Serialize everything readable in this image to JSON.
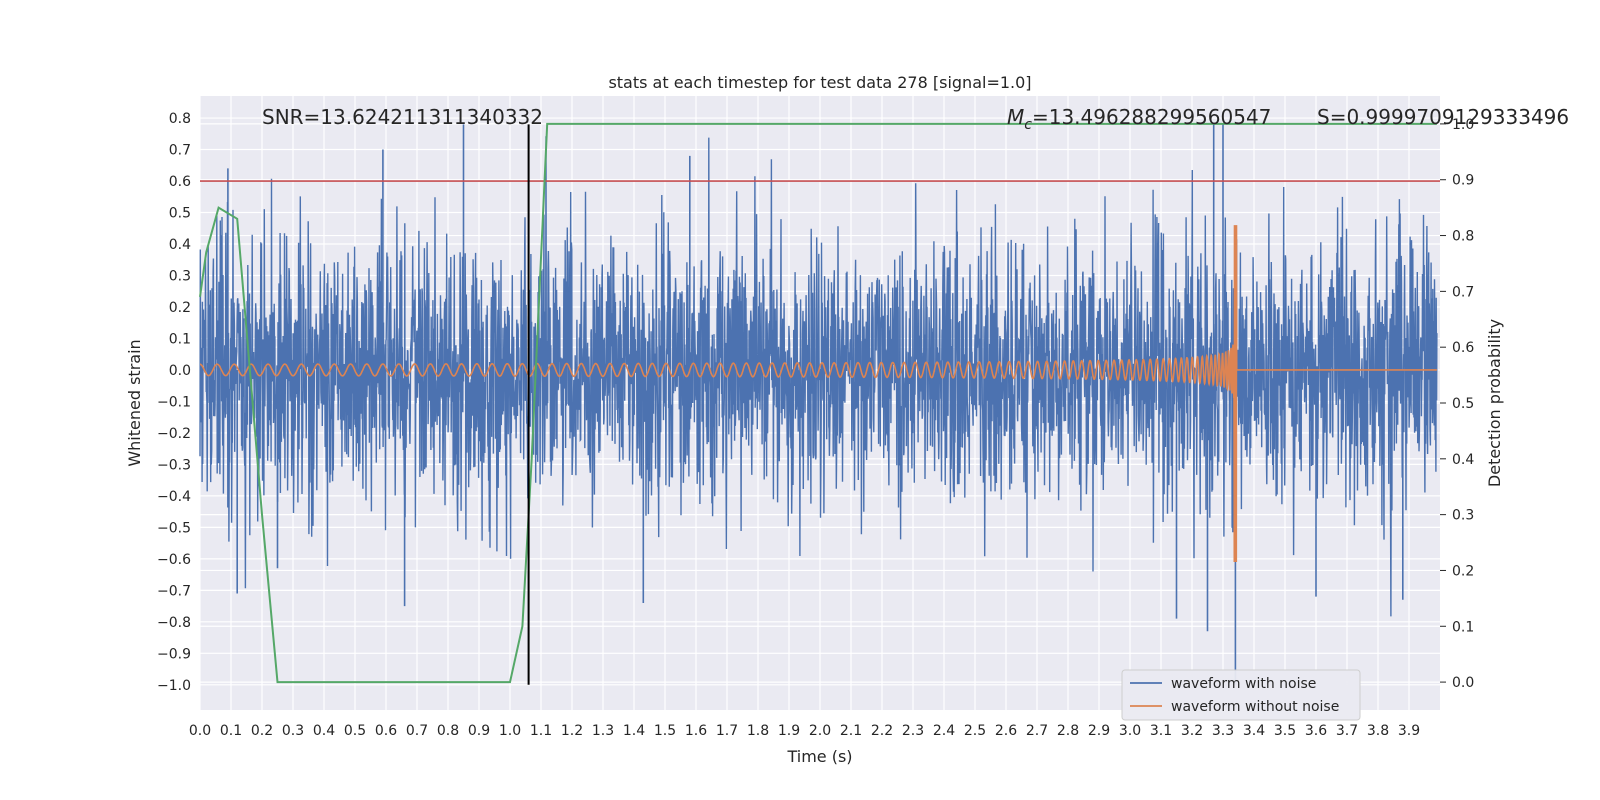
{
  "chart_data": {
    "type": "line",
    "title": "stats at each timestep for test data 278 [signal=1.0]",
    "xlabel": "Time (s)",
    "ylabel": "Whitened strain",
    "y2label": "Detection probability",
    "xlim": [
      0.0,
      4.0
    ],
    "ylim": [
      -1.08,
      0.87
    ],
    "y2lim": [
      -0.05,
      1.05
    ],
    "xticks": [
      "0.0",
      "0.1",
      "0.2",
      "0.3",
      "0.4",
      "0.5",
      "0.6",
      "0.7",
      "0.8",
      "0.9",
      "1.0",
      "1.1",
      "1.2",
      "1.3",
      "1.4",
      "1.5",
      "1.6",
      "1.7",
      "1.8",
      "1.9",
      "2.0",
      "2.1",
      "2.2",
      "2.3",
      "2.4",
      "2.5",
      "2.6",
      "2.7",
      "2.8",
      "2.9",
      "3.0",
      "3.1",
      "3.2",
      "3.3",
      "3.4",
      "3.5",
      "3.6",
      "3.7",
      "3.8",
      "3.9"
    ],
    "yticks": [
      "0.8",
      "0.7",
      "0.6",
      "0.5",
      "0.4",
      "0.3",
      "0.2",
      "0.1",
      "0.0",
      "−0.1",
      "−0.2",
      "−0.3",
      "−0.4",
      "−0.5",
      "−0.6",
      "−0.7",
      "−0.8",
      "−0.9",
      "−1.0"
    ],
    "y2ticks": [
      "1.0",
      "0.9",
      "0.8",
      "0.7",
      "0.6",
      "0.5",
      "0.4",
      "0.3",
      "0.2",
      "0.1",
      "0.0"
    ],
    "grid": true,
    "legend_position": "lower-right",
    "annotations": {
      "snr": "SNR=13.624211311340332",
      "mc_prefix": "M",
      "mc_sub": "c",
      "mc_value": "=13.496288299560547",
      "s": "S=0.9999709129333496"
    },
    "threshold_line": {
      "y": 0.6,
      "color": "#c44e52"
    },
    "marker_line": {
      "x": 1.06,
      "ymin": -1.0,
      "ymax": 0.78,
      "color": "#000000"
    },
    "series": [
      {
        "name": "waveform with noise",
        "color": "#4c72b0",
        "description_kind": "noise",
        "t_range": [
          0.0,
          3.99
        ],
        "amplitude_typical": 0.4,
        "peaks": [
          {
            "t": 0.09,
            "y": 0.64
          },
          {
            "t": 0.59,
            "y": 0.7
          },
          {
            "t": 0.85,
            "y": 0.78
          },
          {
            "t": 1.58,
            "y": 0.68
          },
          {
            "t": 3.27,
            "y": 0.78
          },
          {
            "t": 3.3,
            "y": 0.78
          },
          {
            "t": 3.34,
            "y": -1.0
          },
          {
            "t": 0.66,
            "y": -0.75
          },
          {
            "t": 1.43,
            "y": -0.74
          },
          {
            "t": 3.15,
            "y": -0.79
          },
          {
            "t": 3.25,
            "y": -0.83
          },
          {
            "t": 0.12,
            "y": -0.71
          },
          {
            "t": 0.25,
            "y": -0.63
          },
          {
            "t": 3.6,
            "y": -0.72
          },
          {
            "t": 3.88,
            "y": -0.73
          }
        ]
      },
      {
        "name": "waveform without noise",
        "color": "#dd8452",
        "description_kind": "chirp",
        "t_start": 0.0,
        "t_merger": 3.34,
        "amp_start": 0.018,
        "amp_peak_pos": 0.46,
        "amp_peak_neg": -0.61,
        "freq_start_hz": 18
      },
      {
        "name": "Detection probability",
        "color": "#55a868",
        "axis": "right",
        "x": [
          0.0,
          0.02,
          0.06,
          0.12,
          0.2,
          0.25,
          0.31,
          0.5,
          0.7,
          0.9,
          0.96,
          1.0,
          1.04,
          1.07,
          1.12,
          3.99
        ],
        "y": [
          0.69,
          0.77,
          0.85,
          0.83,
          0.3,
          0.0,
          0.0,
          0.0,
          0.0,
          0.0,
          0.0,
          0.0,
          0.1,
          0.4,
          1.0,
          1.0
        ]
      }
    ],
    "legend": [
      "waveform with noise",
      "waveform without noise"
    ]
  }
}
